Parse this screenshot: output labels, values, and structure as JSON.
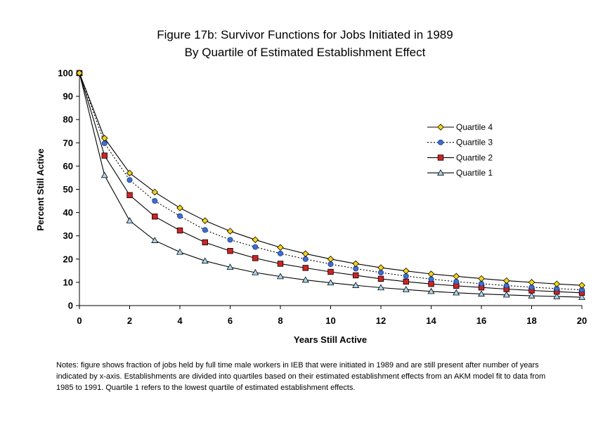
{
  "chart_data": {
    "type": "line",
    "title": "Figure 17b: Survivor Functions for Jobs Initiated in 1989",
    "subtitle": "By Quartile of Estimated Establishment Effect",
    "xlabel": "Years Still Active",
    "ylabel": "Percent Still Active",
    "xlim": [
      0,
      20
    ],
    "ylim": [
      0,
      100
    ],
    "x_ticks": [
      "0",
      "2",
      "4",
      "6",
      "8",
      "10",
      "12",
      "14",
      "16",
      "18",
      "20"
    ],
    "y_ticks": [
      "0",
      "10",
      "20",
      "30",
      "40",
      "50",
      "60",
      "70",
      "80",
      "90",
      "100"
    ],
    "grid": false,
    "legend_placement": "right",
    "x": [
      0,
      1,
      2,
      3,
      4,
      5,
      6,
      7,
      8,
      9,
      10,
      11,
      12,
      13,
      14,
      15,
      16,
      17,
      18,
      19,
      20
    ],
    "series": [
      {
        "name": "Quartile 4",
        "marker": "diamond",
        "line": "solid",
        "marker_color": "#ffd700",
        "values": [
          100,
          72.0,
          57.0,
          48.8,
          42.0,
          36.5,
          32.0,
          28.3,
          25.0,
          22.3,
          20.0,
          18.0,
          16.3,
          14.9,
          13.6,
          12.6,
          11.6,
          10.7,
          10.0,
          9.3,
          8.7
        ]
      },
      {
        "name": "Quartile 3",
        "marker": "circle",
        "line": "dotted",
        "marker_color": "#3a6fd8",
        "values": [
          100,
          69.8,
          54.0,
          45.0,
          38.5,
          32.5,
          28.3,
          25.2,
          22.4,
          20.0,
          17.8,
          15.9,
          14.2,
          12.7,
          11.4,
          10.3,
          9.4,
          8.6,
          7.9,
          7.3,
          6.8
        ]
      },
      {
        "name": "Quartile 2",
        "marker": "square",
        "line": "solid",
        "marker_color": "#d62020",
        "values": [
          100,
          64.5,
          47.5,
          38.3,
          32.3,
          27.2,
          23.5,
          20.4,
          18.0,
          16.2,
          14.5,
          13.0,
          11.5,
          10.3,
          9.3,
          8.5,
          7.8,
          7.1,
          6.5,
          6.0,
          5.5
        ]
      },
      {
        "name": "Quartile 1",
        "marker": "triangle",
        "line": "solid",
        "marker_color": "#a8d8f0",
        "values": [
          100,
          56.0,
          36.5,
          28.0,
          23.0,
          19.2,
          16.5,
          14.2,
          12.5,
          11.0,
          9.8,
          8.7,
          7.7,
          6.9,
          6.1,
          5.5,
          5.0,
          4.6,
          4.2,
          3.9,
          3.6
        ]
      }
    ]
  },
  "notes": {
    "line1": "Notes: figure shows fraction of jobs held by full time male workers in IEB that were initiated in 1989 and are still present after number of years",
    "line2": "indicated by x-axis.  Establishments are divided into quartiles based on their estimated establishment effects from an AKM model fit to data from",
    "line3": "1985 to 1991. Quartile 1 refers to the lowest quartile of estimated establishment effects."
  }
}
